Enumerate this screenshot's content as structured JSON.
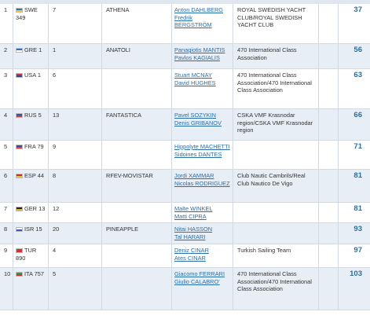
{
  "rows": [
    {
      "rank": "1",
      "nat": "SWE",
      "sail": "349",
      "bow": "7",
      "boat": "ATHENA",
      "crew": [
        "Anton DAHLBERG",
        "Fredrik BERGSTRÖM"
      ],
      "club": "ROYAL SWEDISH YACHT CLUB/ROYAL SWEDISH YACHT CLUB",
      "total": "37",
      "flag_colors": [
        "#3a6fb5",
        "#f5c72b"
      ]
    },
    {
      "rank": "2",
      "nat": "GRE",
      "sail": "1",
      "bow": "1",
      "boat": "ANATOLI",
      "crew": [
        "Panagiotis MANTIS",
        "Pavlos KAGIALIS"
      ],
      "club": "470 International Class Association",
      "total": "56",
      "flag_colors": [
        "#2f6fbf",
        "#ffffff"
      ]
    },
    {
      "rank": "3",
      "nat": "USA",
      "sail": "1",
      "bow": "6",
      "boat": "",
      "crew": [
        "Stuart MCNAY",
        "David HUGHES"
      ],
      "club": "470 International Class Association/470 International Class Association",
      "total": "63",
      "flag_colors": [
        "#c8313e",
        "#2d4a8a"
      ]
    },
    {
      "rank": "4",
      "nat": "RUS",
      "sail": "5",
      "bow": "13",
      "boat": "FANTASTICA",
      "crew": [
        "Pavel SOZYKIN",
        "Denis GRIBANOV"
      ],
      "club": "CSKA VMF Krasnodar region/CSKA VMF Krasnodar region",
      "total": "66",
      "flag_colors": [
        "#2f55a8",
        "#d33a3a"
      ]
    },
    {
      "rank": "5",
      "nat": "FRA",
      "sail": "79",
      "bow": "9",
      "boat": "",
      "crew": [
        "Hippolyte MACHETTI",
        "Sidoines DANTES"
      ],
      "club": "",
      "total": "71",
      "flag_colors": [
        "#2f4f9f",
        "#e23b3b"
      ]
    },
    {
      "rank": "6",
      "nat": "ESP",
      "sail": "44",
      "bow": "8",
      "boat": "RFEV-MOVISTAR",
      "crew": [
        "Jordi XAMMAR",
        "Nicolas RODRIGUEZ"
      ],
      "club": "Club Nautic Cambrils/Real Club Nautico De Vigo",
      "total": "81",
      "flag_colors": [
        "#c9302c",
        "#f3c13a"
      ]
    },
    {
      "rank": "7",
      "nat": "GER",
      "sail": "13",
      "bow": "12",
      "boat": "",
      "crew": [
        "Malte WINKEL",
        "Matti CIPRA"
      ],
      "club": "",
      "total": "81",
      "flag_colors": [
        "#222222",
        "#e0b81f"
      ]
    },
    {
      "rank": "8",
      "nat": "ISR",
      "sail": "15",
      "bow": "20",
      "boat": "PINEAPPLE",
      "crew": [
        "Nitai HASSON",
        "Tal HARARI"
      ],
      "club": "",
      "total": "93",
      "flag_colors": [
        "#ffffff",
        "#2e5db3"
      ]
    },
    {
      "rank": "9",
      "nat": "TUR",
      "sail": "890",
      "bow": "4",
      "boat": "",
      "crew": [
        "Deniz CINAR",
        "Ates CINAR"
      ],
      "club": "Turkish Sailing Team",
      "total": "97",
      "flag_colors": [
        "#d8302f",
        "#d8302f"
      ]
    },
    {
      "rank": "10",
      "nat": "ITA",
      "sail": "757",
      "bow": "5",
      "boat": "",
      "crew": [
        "Giacomo FERRARI",
        "Giulio CALABRO'"
      ],
      "club": "470 International Class Association/470 International Class Association",
      "total": "103",
      "flag_colors": [
        "#2f9a4a",
        "#d8302f"
      ]
    }
  ]
}
